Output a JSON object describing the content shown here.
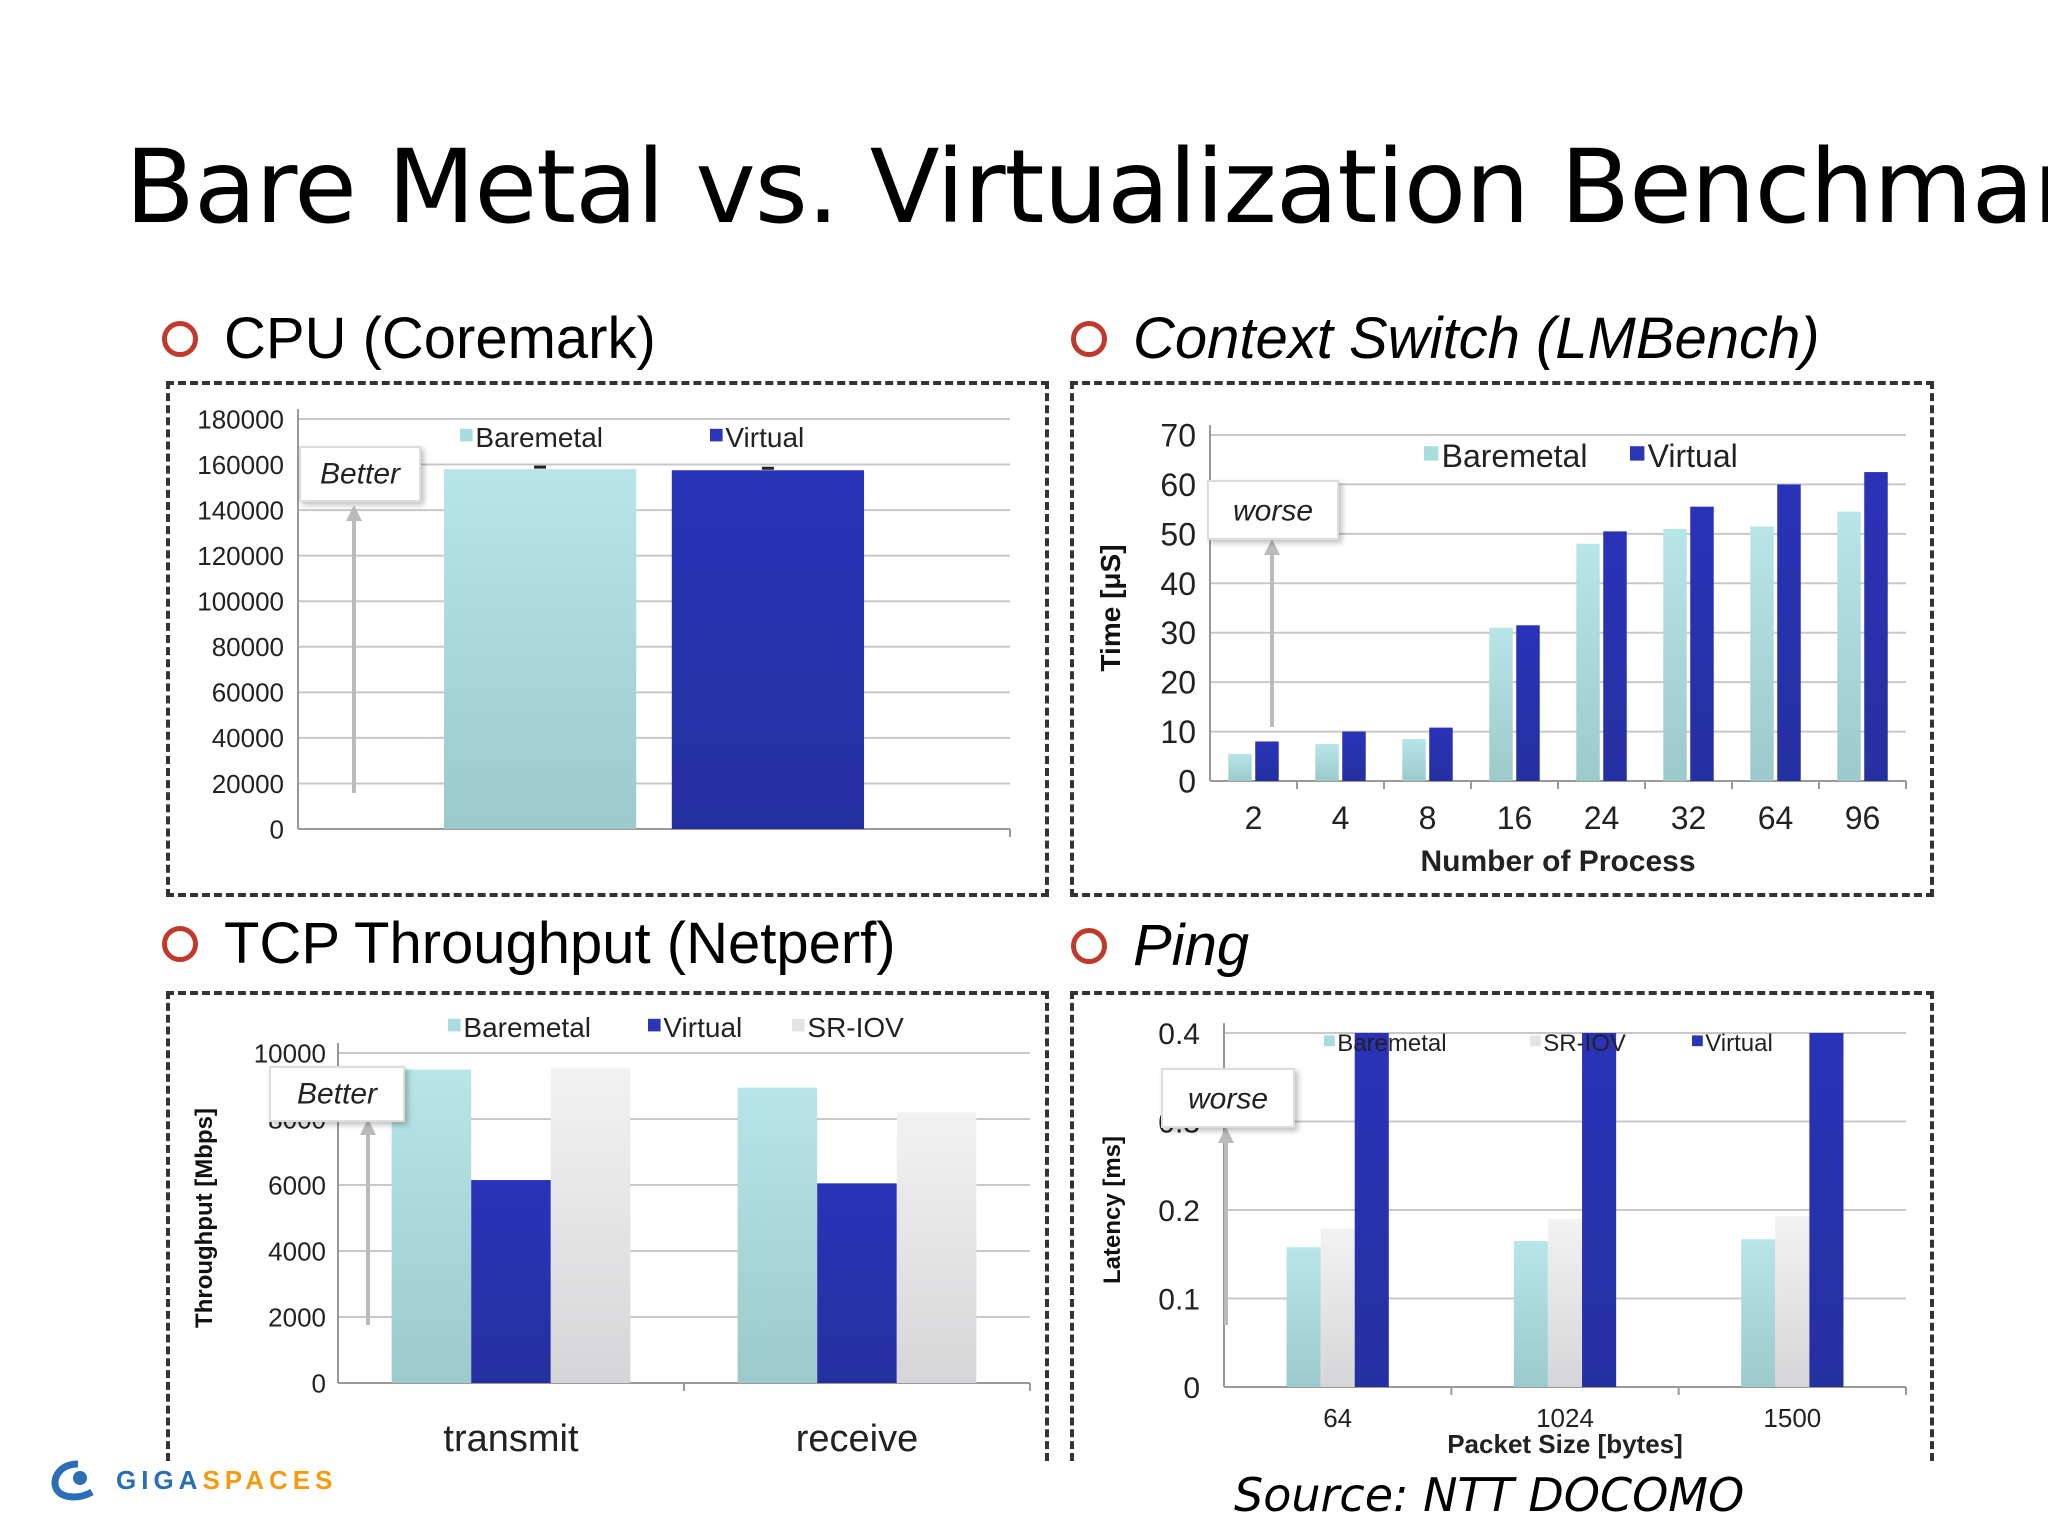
{
  "slide": {
    "title": "Bare Metal vs. Virtualization Benchmark",
    "source": "Source: NTT DOCOMO",
    "logo": {
      "icon": "gigaspaces-swirl-icon",
      "text_main": "GIGA",
      "text_accent": "SPACES"
    }
  },
  "colors": {
    "baremetal": "#a9dcdd",
    "virtual": "#2c35b5",
    "sriov": "#e4e4e6",
    "bullet": "#c0392b"
  },
  "chart_data": [
    {
      "id": "cpu",
      "panel_title": "CPU (Coremark)",
      "title_italic": false,
      "type": "bar",
      "categories": [
        ""
      ],
      "series": [
        {
          "name": "Baremetal",
          "values": [
            158000
          ]
        },
        {
          "name": "Virtual",
          "values": [
            157500
          ]
        }
      ],
      "ylim": [
        0,
        180000
      ],
      "yticks": [
        "0",
        "20000",
        "40000",
        "60000",
        "80000",
        "100000",
        "120000",
        "140000",
        "160000",
        "180000"
      ],
      "ylabel": "",
      "xlabel": "",
      "annotation": "Better",
      "legend": "top"
    },
    {
      "id": "context",
      "panel_title": "Context Switch (LMBench)",
      "title_italic": true,
      "type": "bar",
      "categories": [
        "2",
        "4",
        "8",
        "16",
        "24",
        "32",
        "64",
        "96"
      ],
      "series": [
        {
          "name": "Baremetal",
          "values": [
            5.5,
            7.5,
            8.5,
            31,
            48,
            51,
            51.5,
            54.5
          ]
        },
        {
          "name": "Virtual",
          "values": [
            8,
            10,
            10.8,
            31.5,
            50.5,
            55.5,
            60,
            62.5
          ]
        }
      ],
      "ylim": [
        0,
        70
      ],
      "yticks": [
        "0",
        "10",
        "20",
        "30",
        "40",
        "50",
        "60",
        "70"
      ],
      "ylabel": "Time [μS]",
      "xlabel": "Number of Process",
      "annotation": "worse",
      "legend": "top-right"
    },
    {
      "id": "tcp",
      "panel_title": "TCP Throughput (Netperf)",
      "title_italic": false,
      "type": "bar",
      "categories": [
        "transmit",
        "receive"
      ],
      "series": [
        {
          "name": "Baremetal",
          "values": [
            9500,
            8950
          ]
        },
        {
          "name": "Virtual",
          "values": [
            6150,
            6050
          ]
        },
        {
          "name": "SR-IOV",
          "values": [
            9550,
            8200
          ]
        }
      ],
      "ylim": [
        0,
        10000
      ],
      "yticks": [
        "0",
        "2000",
        "4000",
        "6000",
        "8000",
        "10000"
      ],
      "ylabel": "Throughput [Mbps]",
      "xlabel": "",
      "annotation": "Better",
      "legend": "top"
    },
    {
      "id": "ping",
      "panel_title": "Ping",
      "title_italic": true,
      "type": "bar",
      "categories": [
        "64",
        "1024",
        "1500"
      ],
      "series": [
        {
          "name": "Baremetal",
          "values": [
            0.158,
            0.165,
            0.167
          ]
        },
        {
          "name": "SR-IOV",
          "values": [
            0.179,
            0.19,
            0.193
          ]
        },
        {
          "name": "Virtual",
          "values": [
            0.4,
            0.4,
            0.4
          ]
        }
      ],
      "ylim": [
        0,
        0.4
      ],
      "yticks": [
        "0",
        "0.1",
        "0.2",
        "0.3",
        "0.4"
      ],
      "ylabel": "Latency [ms]",
      "xlabel": "Packet Size [bytes]",
      "annotation": "worse",
      "legend": "top"
    }
  ]
}
